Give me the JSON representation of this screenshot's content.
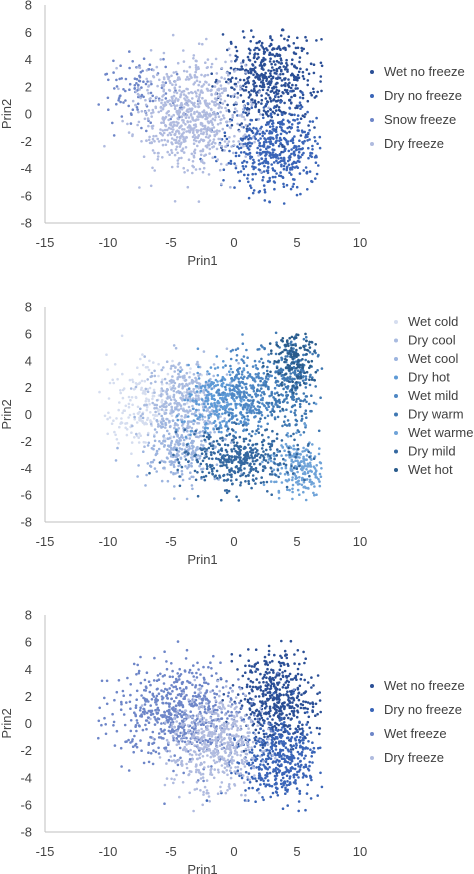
{
  "chart_data": [
    {
      "type": "scatter",
      "xlabel": "Prin1",
      "ylabel": "Prin2",
      "xlim": [
        -15,
        10
      ],
      "ylim": [
        -8,
        8
      ],
      "xticks": [
        "-15",
        "-10",
        "-5",
        "0",
        "5",
        "10"
      ],
      "yticks": [
        "8",
        "6",
        "4",
        "2",
        "0",
        "-2",
        "-4",
        "-6",
        "-8"
      ],
      "legend_position": "right",
      "series": [
        {
          "name": "Wet no freeze",
          "color": "#2b4f96",
          "clusters": [
            {
              "cx": 2.8,
              "cy": 2.5,
              "sx": 1.9,
              "sy": 1.8,
              "n": 550
            }
          ]
        },
        {
          "name": "Dry no freeze",
          "color": "#3a65b8",
          "clusters": [
            {
              "cx": 3.4,
              "cy": -2.6,
              "sx": 1.9,
              "sy": 1.6,
              "n": 480
            }
          ]
        },
        {
          "name": "Snow freeze",
          "color": "#6e86c8",
          "clusters": [
            {
              "cx": -7.5,
              "cy": 1.6,
              "sx": 1.8,
              "sy": 1.4,
              "n": 110
            }
          ]
        },
        {
          "name": "Dry freeze",
          "color": "#b0bbdf",
          "clusters": [
            {
              "cx": -3.4,
              "cy": 0.0,
              "sx": 2.2,
              "sy": 2.0,
              "n": 750
            }
          ]
        }
      ]
    },
    {
      "type": "scatter",
      "xlabel": "Prin1",
      "ylabel": "Prin2",
      "xlim": [
        -15,
        10
      ],
      "ylim": [
        -8,
        8
      ],
      "xticks": [
        "-15",
        "-10",
        "-5",
        "0",
        "5",
        "10"
      ],
      "yticks": [
        "8",
        "6",
        "4",
        "2",
        "0",
        "-2",
        "-4",
        "-6",
        "-8"
      ],
      "legend_position": "right",
      "series": [
        {
          "name": "Wet cold",
          "color": "#d5ddef",
          "clusters": [
            {
              "cx": -7.0,
              "cy": 0.8,
              "sx": 1.8,
              "sy": 1.6,
              "n": 220
            }
          ]
        },
        {
          "name": "Dry cool",
          "color": "#a9bbe0",
          "clusters": [
            {
              "cx": -3.8,
              "cy": 1.0,
              "sx": 1.6,
              "sy": 1.6,
              "n": 380
            }
          ]
        },
        {
          "name": "Wet cool",
          "color": "#9cb4df",
          "clusters": [
            {
              "cx": -4.2,
              "cy": -2.6,
              "sx": 1.5,
              "sy": 1.3,
              "n": 250
            }
          ]
        },
        {
          "name": "Dry hot",
          "color": "#5e9ad6",
          "clusters": [
            {
              "cx": -1.3,
              "cy": 0.9,
              "sx": 1.2,
              "sy": 1.4,
              "n": 260
            }
          ]
        },
        {
          "name": "Wet mild",
          "color": "#4e87c4",
          "clusters": [
            {
              "cx": 1.3,
              "cy": 1.6,
              "sx": 1.1,
              "sy": 1.5,
              "n": 270
            }
          ]
        },
        {
          "name": "Dry warm",
          "color": "#3f78b2",
          "clusters": [
            {
              "cx": 4.4,
              "cy": 2.3,
              "sx": 1.2,
              "sy": 1.6,
              "n": 300
            }
          ]
        },
        {
          "name": "Wet warme",
          "color": "#6fa3d8",
          "clusters": [
            {
              "cx": 5.1,
              "cy": -3.8,
              "sx": 1.1,
              "sy": 1.1,
              "n": 230
            }
          ]
        },
        {
          "name": "Dry mild",
          "color": "#3468a0",
          "clusters": [
            {
              "cx": 0.2,
              "cy": -3.2,
              "sx": 2.2,
              "sy": 1.1,
              "n": 420
            }
          ]
        },
        {
          "name": "Wet hot",
          "color": "#2a5c8c",
          "clusters": [
            {
              "cx": 4.7,
              "cy": 4.2,
              "sx": 0.9,
              "sy": 1.1,
              "n": 140
            }
          ]
        }
      ]
    },
    {
      "type": "scatter",
      "xlabel": "Prin1",
      "ylabel": "Prin2",
      "xlim": [
        -15,
        10
      ],
      "ylim": [
        -8,
        8
      ],
      "xticks": [
        "-15",
        "-10",
        "-5",
        "0",
        "5",
        "10"
      ],
      "yticks": [
        "8",
        "6",
        "4",
        "2",
        "0",
        "-2",
        "-4",
        "-6",
        "-8"
      ],
      "legend_position": "right",
      "series": [
        {
          "name": "Wet no freeze",
          "color": "#2b4f96",
          "clusters": [
            {
              "cx": 3.4,
              "cy": 1.6,
              "sx": 1.6,
              "sy": 2.0,
              "n": 520
            }
          ]
        },
        {
          "name": "Dry no freeze",
          "color": "#3a65b8",
          "clusters": [
            {
              "cx": 3.6,
              "cy": -2.8,
              "sx": 1.7,
              "sy": 1.5,
              "n": 430
            }
          ]
        },
        {
          "name": "Wet freeze",
          "color": "#6e86c8",
          "clusters": [
            {
              "cx": -4.5,
              "cy": 0.8,
              "sx": 2.6,
              "sy": 1.8,
              "n": 640
            }
          ]
        },
        {
          "name": "Dry freeze",
          "color": "#b0bbdf",
          "clusters": [
            {
              "cx": -1.5,
              "cy": -1.5,
              "sx": 1.8,
              "sy": 1.8,
              "n": 520
            }
          ]
        }
      ]
    }
  ]
}
